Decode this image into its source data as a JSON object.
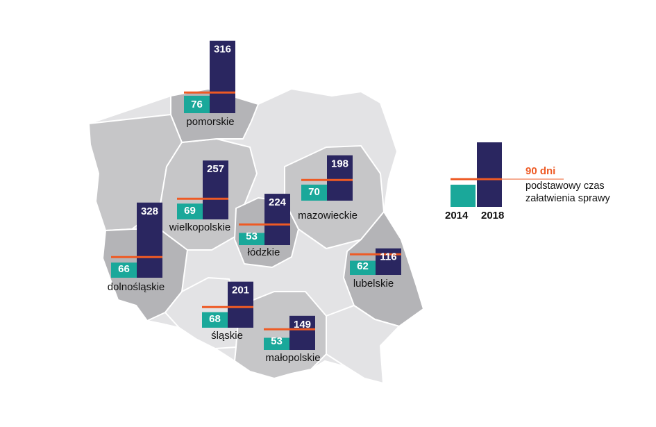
{
  "colors": {
    "bar_2014": "#1aa89a",
    "bar_2018": "#2a2660",
    "reference_line": "#ee5a24",
    "map_light": "#e3e3e5",
    "map_mid": "#c6c6c8",
    "map_dark": "#b4b4b7",
    "map_border": "#ffffff"
  },
  "chart_data": {
    "type": "bar",
    "unit": "dni",
    "series": [
      {
        "name": "2014",
        "color": "#1aa89a"
      },
      {
        "name": "2018",
        "color": "#2a2660"
      }
    ],
    "reference_line": {
      "value": 90,
      "label": "90 dni",
      "description": [
        "podstawowy czas",
        "załatwienia sprawy"
      ]
    },
    "regions": [
      {
        "name": "pomorskie",
        "v2014": 76,
        "v2018": 316
      },
      {
        "name": "wielkopolskie",
        "v2014": 69,
        "v2018": 257
      },
      {
        "name": "dolnośląskie",
        "v2014": 66,
        "v2018": 328
      },
      {
        "name": "łódzkie",
        "v2014": 53,
        "v2018": 224
      },
      {
        "name": "mazowieckie",
        "v2014": 70,
        "v2018": 198
      },
      {
        "name": "lubelskie",
        "v2014": 62,
        "v2018": 116
      },
      {
        "name": "śląskie",
        "v2014": 68,
        "v2018": 201
      },
      {
        "name": "małopolskie",
        "v2014": 53,
        "v2018": 149
      }
    ]
  },
  "legend": {
    "year_2014": "2014",
    "year_2018": "2018",
    "ref_label": "90 dni",
    "ref_desc_line1": "podstawowy czas",
    "ref_desc_line2": "załatwienia sprawy"
  }
}
